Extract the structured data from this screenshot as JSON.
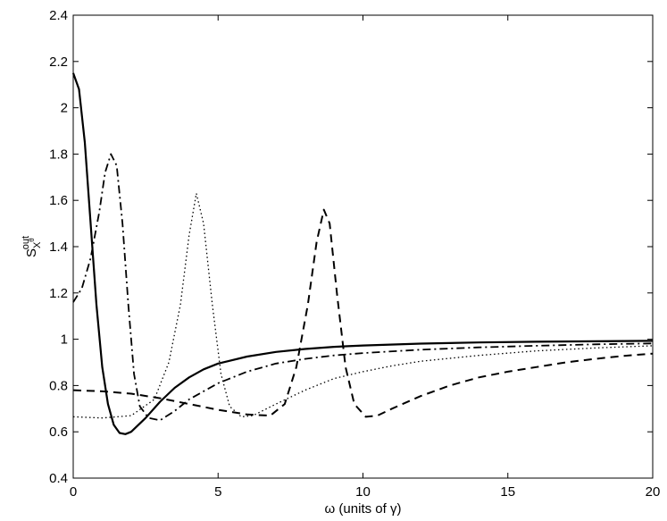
{
  "chart_data": {
    "type": "line",
    "title": "",
    "xlabel": "ω (units of γ)",
    "ylabel": {
      "base": "S",
      "sub": "X",
      "subsup": "θ",
      "sup": "out"
    },
    "xlim": [
      0,
      20
    ],
    "ylim": [
      0.4,
      2.4
    ],
    "xticks": [
      0,
      5,
      10,
      15,
      20
    ],
    "xtick_labels": [
      "0",
      "5",
      "10",
      "15",
      "20"
    ],
    "yticks": [
      0.4,
      0.6,
      0.8,
      1.0,
      1.2,
      1.4,
      1.6,
      1.8,
      2.0,
      2.2,
      2.4
    ],
    "ytick_labels": [
      "0.4",
      "0.6",
      "0.8",
      "1",
      "1.2",
      "1.4",
      "1.6",
      "1.8",
      "2",
      "2.2",
      "2.4"
    ],
    "grid": false,
    "legend": "none",
    "series": [
      {
        "style": "solid",
        "points": [
          [
            0,
            2.15
          ],
          [
            0.2,
            2.08
          ],
          [
            0.4,
            1.85
          ],
          [
            0.6,
            1.5
          ],
          [
            0.8,
            1.15
          ],
          [
            1.0,
            0.88
          ],
          [
            1.2,
            0.72
          ],
          [
            1.4,
            0.63
          ],
          [
            1.6,
            0.595
          ],
          [
            1.8,
            0.59
          ],
          [
            2.0,
            0.6
          ],
          [
            2.5,
            0.66
          ],
          [
            3,
            0.73
          ],
          [
            3.5,
            0.79
          ],
          [
            4,
            0.835
          ],
          [
            4.5,
            0.87
          ],
          [
            5,
            0.895
          ],
          [
            6,
            0.925
          ],
          [
            7,
            0.945
          ],
          [
            8,
            0.958
          ],
          [
            9,
            0.967
          ],
          [
            10,
            0.973
          ],
          [
            12,
            0.981
          ],
          [
            14,
            0.986
          ],
          [
            16,
            0.989
          ],
          [
            18,
            0.991
          ],
          [
            20,
            0.993
          ]
        ]
      },
      {
        "style": "dashdot",
        "points": [
          [
            0,
            1.16
          ],
          [
            0.3,
            1.22
          ],
          [
            0.6,
            1.35
          ],
          [
            0.9,
            1.55
          ],
          [
            1.1,
            1.72
          ],
          [
            1.3,
            1.8
          ],
          [
            1.5,
            1.75
          ],
          [
            1.7,
            1.5
          ],
          [
            1.9,
            1.15
          ],
          [
            2.1,
            0.85
          ],
          [
            2.3,
            0.71
          ],
          [
            2.6,
            0.66
          ],
          [
            3,
            0.65
          ],
          [
            3.5,
            0.69
          ],
          [
            4,
            0.74
          ],
          [
            5,
            0.81
          ],
          [
            6,
            0.86
          ],
          [
            7,
            0.895
          ],
          [
            8,
            0.915
          ],
          [
            9,
            0.93
          ],
          [
            10,
            0.94
          ],
          [
            12,
            0.955
          ],
          [
            14,
            0.965
          ],
          [
            16,
            0.972
          ],
          [
            18,
            0.978
          ],
          [
            20,
            0.982
          ]
        ]
      },
      {
        "style": "dotted",
        "points": [
          [
            0,
            0.665
          ],
          [
            1,
            0.66
          ],
          [
            2,
            0.67
          ],
          [
            2.8,
            0.74
          ],
          [
            3.3,
            0.9
          ],
          [
            3.7,
            1.15
          ],
          [
            4.0,
            1.45
          ],
          [
            4.25,
            1.63
          ],
          [
            4.5,
            1.5
          ],
          [
            4.8,
            1.15
          ],
          [
            5.1,
            0.85
          ],
          [
            5.4,
            0.71
          ],
          [
            5.8,
            0.665
          ],
          [
            6.2,
            0.67
          ],
          [
            7,
            0.72
          ],
          [
            8,
            0.78
          ],
          [
            9,
            0.83
          ],
          [
            10,
            0.86
          ],
          [
            11,
            0.885
          ],
          [
            12,
            0.905
          ],
          [
            14,
            0.93
          ],
          [
            16,
            0.95
          ],
          [
            18,
            0.962
          ],
          [
            20,
            0.972
          ]
        ]
      },
      {
        "style": "dashed",
        "points": [
          [
            0,
            0.78
          ],
          [
            1,
            0.775
          ],
          [
            2,
            0.765
          ],
          [
            3,
            0.745
          ],
          [
            4,
            0.72
          ],
          [
            5,
            0.695
          ],
          [
            6,
            0.675
          ],
          [
            6.8,
            0.67
          ],
          [
            7.3,
            0.72
          ],
          [
            7.7,
            0.88
          ],
          [
            8.1,
            1.15
          ],
          [
            8.4,
            1.42
          ],
          [
            8.65,
            1.56
          ],
          [
            8.85,
            1.5
          ],
          [
            9.1,
            1.2
          ],
          [
            9.4,
            0.88
          ],
          [
            9.7,
            0.72
          ],
          [
            10.1,
            0.665
          ],
          [
            10.5,
            0.67
          ],
          [
            11,
            0.7
          ],
          [
            12,
            0.755
          ],
          [
            13,
            0.8
          ],
          [
            14,
            0.835
          ],
          [
            15,
            0.86
          ],
          [
            16,
            0.88
          ],
          [
            17,
            0.9
          ],
          [
            18,
            0.915
          ],
          [
            19,
            0.928
          ],
          [
            20,
            0.938
          ]
        ]
      }
    ]
  }
}
